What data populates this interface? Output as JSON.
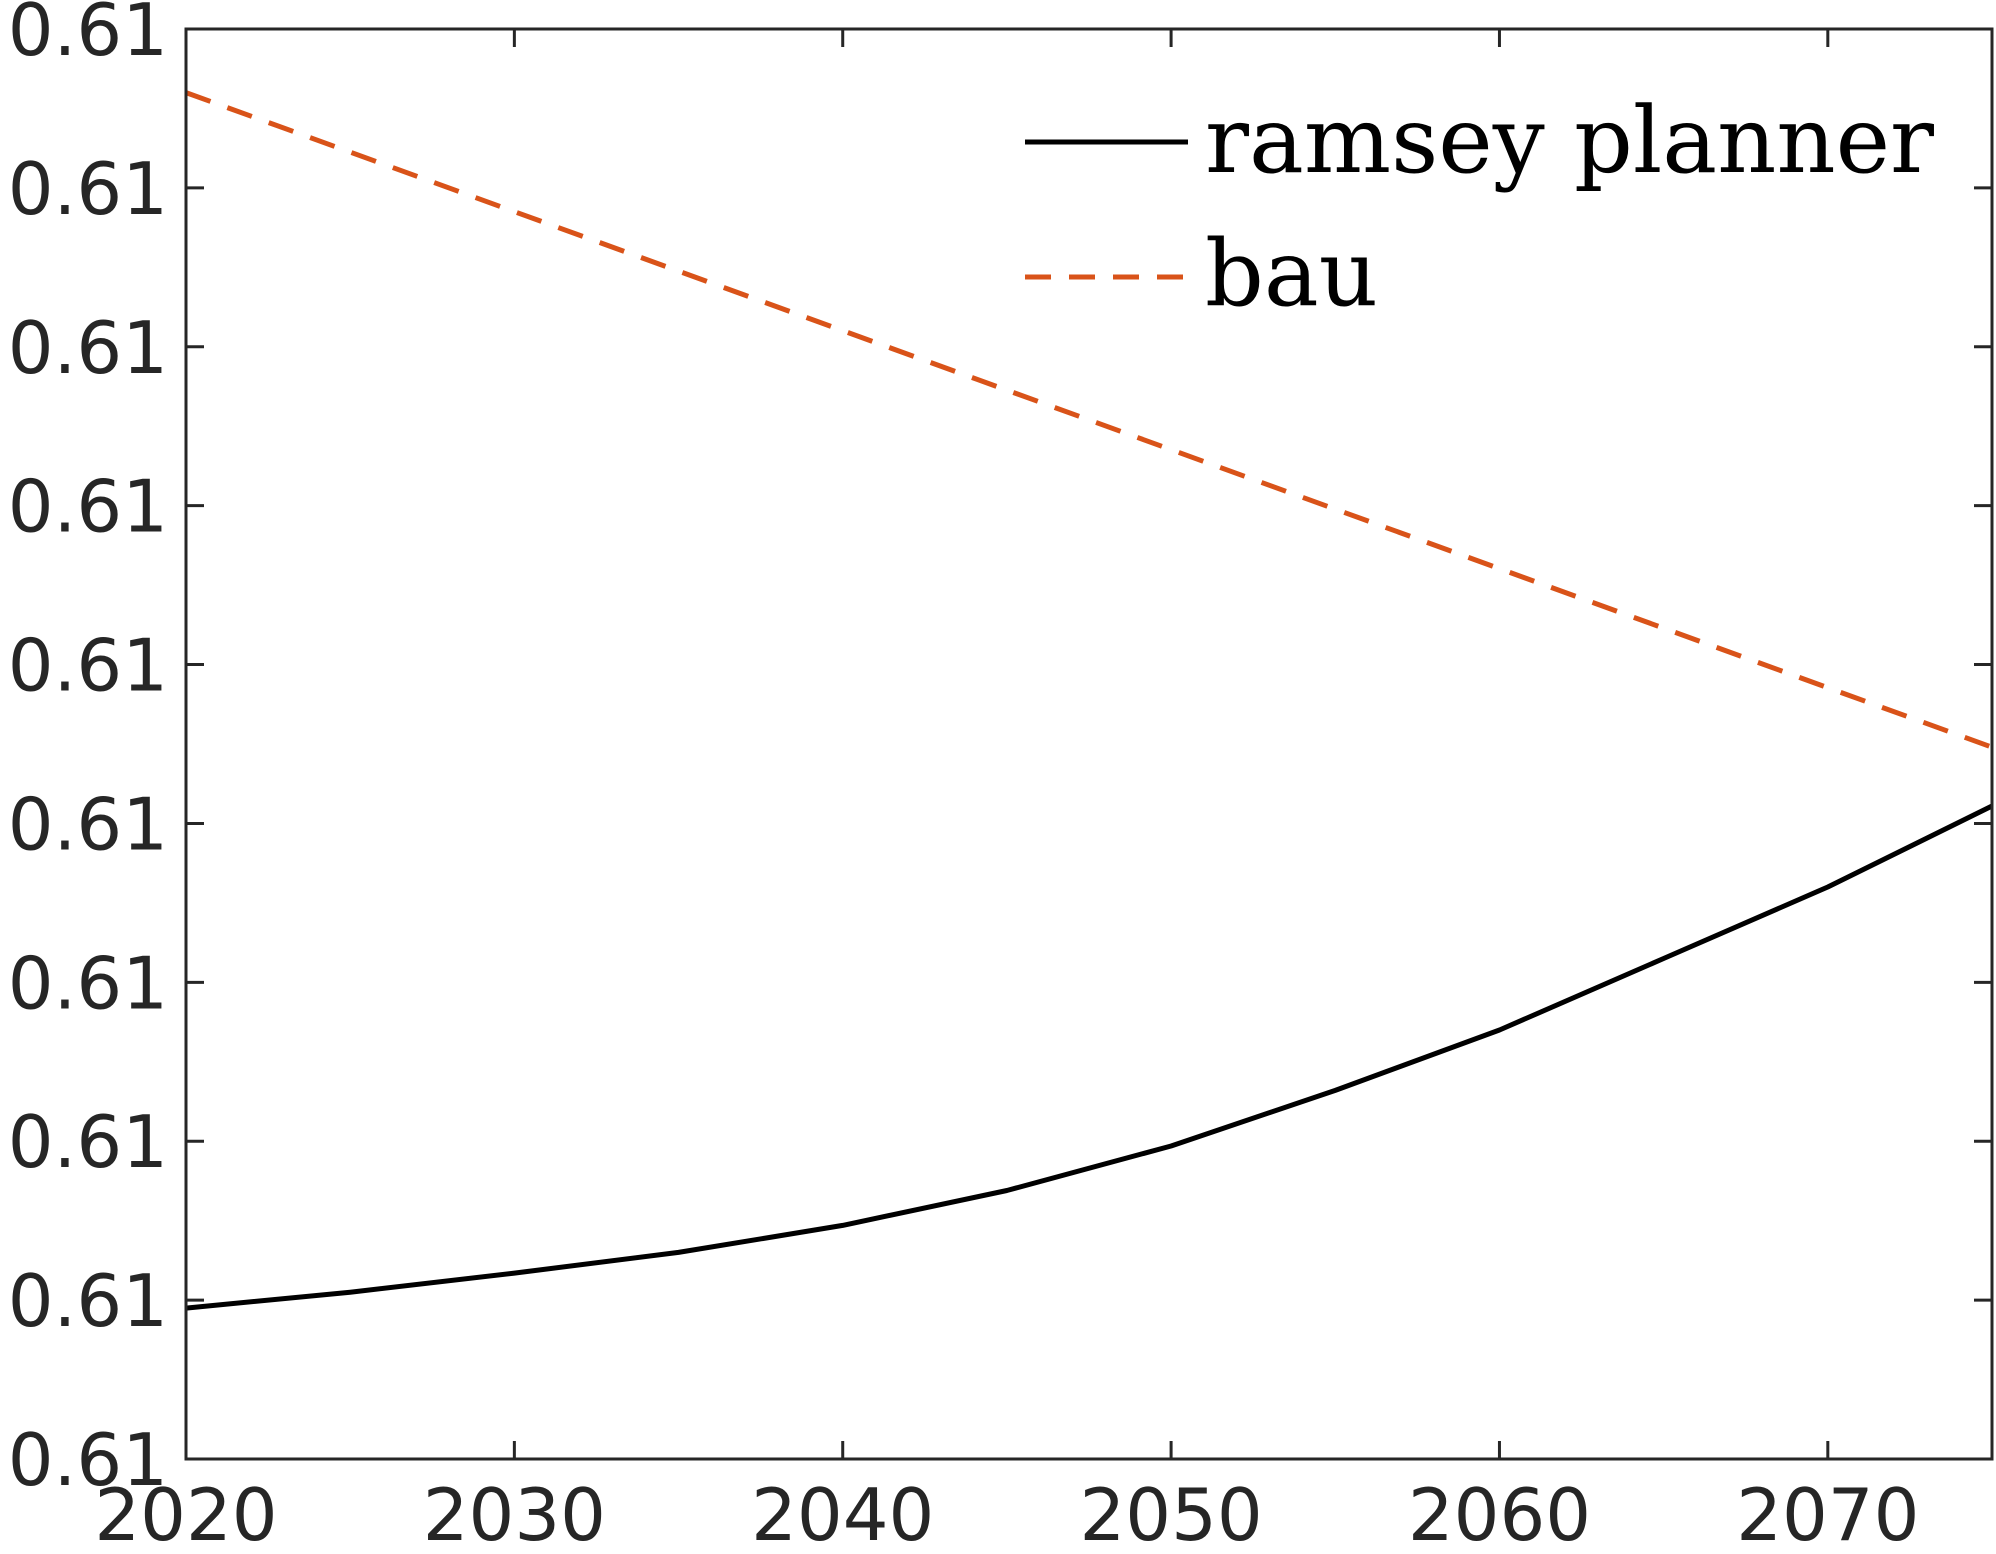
{
  "chart_data": {
    "type": "line",
    "title": "",
    "xlabel": "",
    "ylabel": "",
    "xlim": [
      2020,
      2075
    ],
    "ylim": [
      0,
      9
    ],
    "x_ticks": [
      2020,
      2030,
      2040,
      2050,
      2060,
      2070
    ],
    "x_tick_labels": [
      "2020",
      "2030",
      "2040",
      "2050",
      "2060",
      "2070"
    ],
    "y_ticks": [
      0,
      1,
      2,
      3,
      4,
      5,
      6,
      7,
      8,
      9
    ],
    "y_tick_labels": [
      "0.61",
      "0.61",
      "0.61",
      "0.61",
      "0.61",
      "0.61",
      "0.61",
      "0.61",
      "0.61",
      "0.61"
    ],
    "grid": false,
    "legend": {
      "position": "top-right"
    },
    "series": [
      {
        "name": "ramsey planner",
        "style": "solid",
        "color": "#000000",
        "x": [
          2020,
          2025,
          2030,
          2035,
          2040,
          2045,
          2050,
          2055,
          2060,
          2065,
          2070,
          2075
        ],
        "values": [
          0.95,
          1.05,
          1.17,
          1.3,
          1.47,
          1.69,
          1.97,
          2.32,
          2.7,
          3.15,
          3.6,
          4.11
        ]
      },
      {
        "name": "bau",
        "style": "dashed",
        "color": "#D95319",
        "x": [
          2020,
          2075
        ],
        "values": [
          8.6,
          4.48
        ]
      }
    ]
  }
}
